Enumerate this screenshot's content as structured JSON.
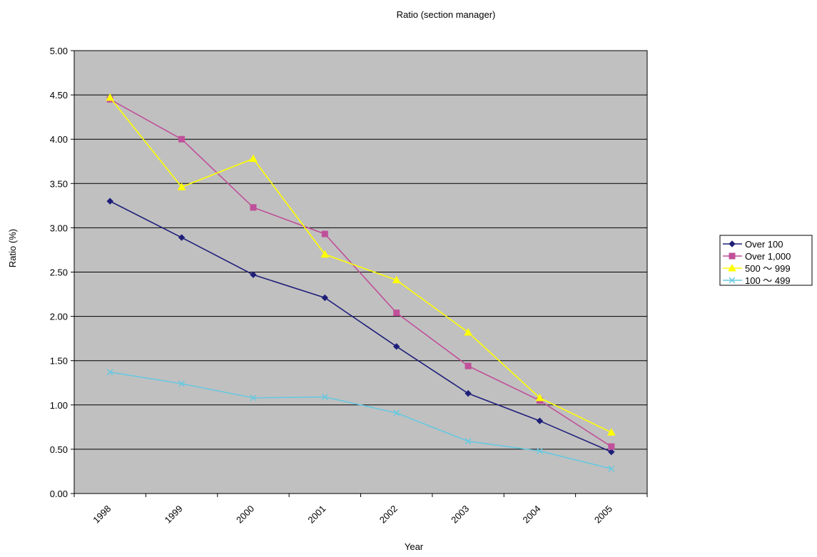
{
  "chart_data": {
    "type": "line",
    "title": "Ratio (section manager)",
    "xlabel": "Year",
    "ylabel": "Ratio (%)",
    "ylim": [
      0,
      5
    ],
    "y_ticks": [
      "0.00",
      "0.50",
      "1.00",
      "1.50",
      "2.00",
      "2.50",
      "3.00",
      "3.50",
      "4.00",
      "4.50",
      "5.00"
    ],
    "categories": [
      "1998",
      "1999",
      "2000",
      "2001",
      "2002",
      "2003",
      "2004",
      "2005"
    ],
    "grid": "horizontal",
    "plot_background": "#c0c0c0",
    "legend_position": "right",
    "series": [
      {
        "name": "Over 100",
        "color": "#1f1f7a",
        "marker": "diamond",
        "values": [
          3.3,
          2.89,
          2.47,
          2.21,
          1.66,
          1.13,
          0.82,
          0.47
        ]
      },
      {
        "name": "Over 1,000",
        "color": "#c0509a",
        "marker": "square",
        "values": [
          4.45,
          4.0,
          3.23,
          2.93,
          2.04,
          1.44,
          1.05,
          0.53
        ]
      },
      {
        "name": "500 ～ 999",
        "color": "#ffff00",
        "marker": "triangle",
        "values": [
          4.47,
          3.46,
          3.78,
          2.7,
          2.41,
          1.82,
          1.08,
          0.69
        ]
      },
      {
        "name": "100 ～ 499",
        "color": "#66c8e0",
        "marker": "x",
        "values": [
          1.37,
          1.24,
          1.08,
          1.09,
          0.91,
          0.59,
          0.48,
          0.28
        ]
      }
    ]
  }
}
